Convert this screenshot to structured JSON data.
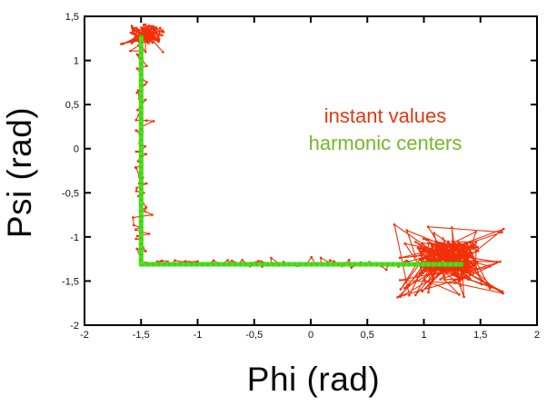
{
  "figure": {
    "background": "#ffffff",
    "frame_color": "#000000"
  },
  "axes": {
    "x": {
      "label": "Phi (rad)",
      "min": -2,
      "max": 2,
      "ticks": [
        -2,
        -1.5,
        -1,
        -0.5,
        0,
        0.5,
        1,
        1.5,
        2
      ],
      "tick_labels": [
        "-2",
        "-1,5",
        "-1",
        "-0,5",
        "0",
        "0,5",
        "1",
        "1,5",
        "2"
      ]
    },
    "y": {
      "label": "Psi (rad)",
      "min": -2,
      "max": 1.5,
      "ticks": [
        1.5,
        1,
        0.5,
        0,
        -0.5,
        -1,
        -1.5,
        -2
      ],
      "tick_labels": [
        "1,5",
        "1",
        "0,5",
        "0",
        "-0,5",
        "-1",
        "-1,5",
        "-2"
      ]
    }
  },
  "legend": {
    "items": [
      {
        "label": "instant values",
        "color": "#e03a12"
      },
      {
        "label": "harmonic centers",
        "color": "#76b82a"
      }
    ]
  },
  "chart_data": {
    "type": "line",
    "title": "",
    "xlabel": "Phi (rad)",
    "ylabel": "Psi (rad)",
    "xlim": [
      -2,
      2
    ],
    "ylim": [
      -2,
      1.5
    ],
    "grid": false,
    "legend_position": "inside upper-right area (text annotations)",
    "series": [
      {
        "name": "harmonic centers",
        "color": "#2fd70d",
        "style": "thick line",
        "points": [
          [
            -1.5,
            1.26
          ],
          [
            -1.5,
            -1.31
          ],
          [
            1.33,
            -1.31
          ]
        ]
      },
      {
        "name": "instant values",
        "color": "#f23008",
        "style": "noisy trajectory with small point markers",
        "trajectory_spec": {
          "seed": 1337,
          "phases": [
            {
              "kind": "cluster",
              "center": [
                -1.45,
                1.3
              ],
              "spread": [
                0.15,
                0.11
              ],
              "outlier_prob": 0.12,
              "outlier_scale": 2.1,
              "count": 85
            },
            {
              "kind": "walk",
              "from": [
                -1.5,
                1.18
              ],
              "to": [
                -1.5,
                -1.24
              ],
              "lateral_axis": "x",
              "lateral_amp": 0.05,
              "outlier_prob": 0.16,
              "outlier_scale": 2.4,
              "count": 72
            },
            {
              "kind": "walk",
              "from": [
                -1.44,
                -1.3
              ],
              "to": [
                0.88,
                -1.3
              ],
              "lateral_axis": "y",
              "lateral_amp": 0.04,
              "outlier_prob": 0.12,
              "outlier_scale": 1.9,
              "count": 62
            },
            {
              "kind": "cluster",
              "center": [
                1.22,
                -1.27
              ],
              "spread": [
                0.26,
                0.22
              ],
              "outlier_prob": 0.22,
              "outlier_scale": 1.9,
              "count": 210
            }
          ]
        }
      }
    ]
  }
}
